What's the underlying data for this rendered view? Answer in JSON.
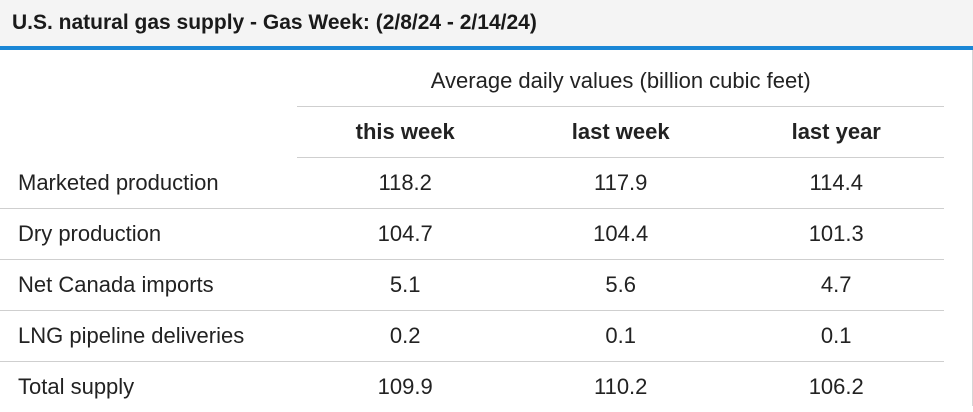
{
  "title": "U.S. natural gas supply - Gas Week: (2/8/24 - 2/14/24)",
  "group_header": "Average daily values (billion cubic feet)",
  "columns": [
    "this week",
    "last week",
    "last year"
  ],
  "rows": [
    {
      "label": "Marketed production",
      "values": [
        "118.2",
        "117.9",
        "114.4"
      ]
    },
    {
      "label": "Dry production",
      "values": [
        "104.7",
        "104.4",
        "101.3"
      ]
    },
    {
      "label": "Net Canada imports",
      "values": [
        "5.1",
        "5.6",
        "4.7"
      ]
    },
    {
      "label": "LNG pipeline deliveries",
      "values": [
        "0.2",
        "0.1",
        "0.1"
      ]
    },
    {
      "label": "Total supply",
      "values": [
        "109.9",
        "110.2",
        "106.2"
      ]
    }
  ],
  "colors": {
    "accent": "#1b87d6",
    "title_background": "#f4f4f4",
    "rule": "#cfcfcf"
  }
}
